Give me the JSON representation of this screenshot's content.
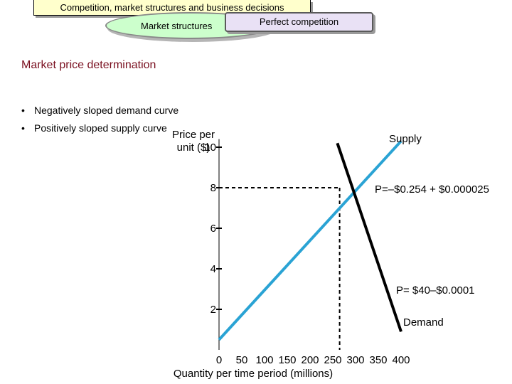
{
  "banner": {
    "text": "Competition, market structures and business decisions"
  },
  "tabs": {
    "market_structures": "Market structures",
    "perfect_competition": "Perfect competition"
  },
  "page_title": "Market price determination",
  "bullets": [
    {
      "marker": "•",
      "text": "Negatively sloped demand curve"
    },
    {
      "marker": "•",
      "text": "Positively sloped supply curve"
    }
  ],
  "colors": {
    "supply": "#2aa3d4",
    "demand": "#000000",
    "title": "#7a1020",
    "banner_bg": "#ffffcc",
    "oval_bg": "#ccffcc",
    "rect_bg": "#e9e1f5"
  },
  "chart_data": {
    "type": "line",
    "ylabel": "Price per unit ($)",
    "xlabel": "Quantity per time period (millions)",
    "ylim": [
      0,
      10
    ],
    "xlim": [
      0,
      400
    ],
    "y_ticks": [
      "10",
      "8",
      "6",
      "4",
      "2"
    ],
    "x_ticks": [
      "0",
      "50",
      "100",
      "150",
      "200",
      "250",
      "300",
      "350",
      "400"
    ],
    "series": [
      {
        "name": "Supply",
        "equation": "P=–$0.254 + $0.000025",
        "points": [
          [
            0,
            0.5
          ],
          [
            400,
            10.3
          ]
        ]
      },
      {
        "name": "Demand",
        "equation": "P= $40–$0.0001",
        "points": [
          [
            260,
            10.2
          ],
          [
            400,
            0.9
          ]
        ]
      }
    ],
    "equilibrium": {
      "x": 265,
      "y": 8
    }
  }
}
